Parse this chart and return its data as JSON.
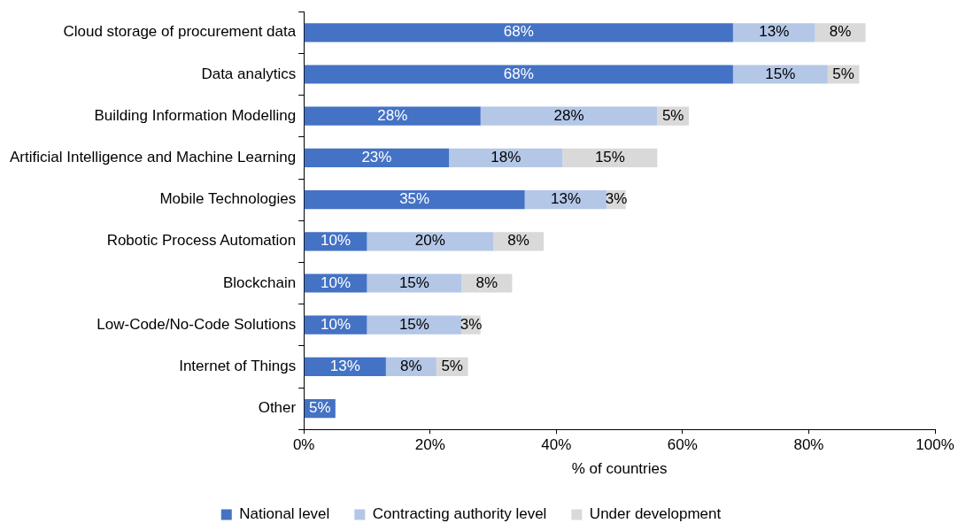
{
  "chart_data": {
    "type": "bar",
    "orientation": "horizontal",
    "stacked": true,
    "xlabel": "% of countries",
    "categories": [
      "Cloud storage of procurement data",
      "Data analytics",
      "Building Information Modelling",
      "Artificial Intelligence and Machine Learning",
      "Mobile Technologies",
      "Robotic Process Automation",
      "Blockchain",
      "Low-Code/No-Code Solutions",
      "Internet of Things",
      "Other"
    ],
    "series": [
      {
        "name": "National level",
        "color": "#4472c4",
        "values": [
          68,
          68,
          28,
          23,
          35,
          10,
          10,
          10,
          13,
          5
        ],
        "value_labels": [
          "68%",
          "68%",
          "28%",
          "23%",
          "35%",
          "10%",
          "10%",
          "10%",
          "13%",
          "5%"
        ]
      },
      {
        "name": "Contracting authority level",
        "color": "#b4c7e7",
        "values": [
          13,
          15,
          28,
          18,
          13,
          20,
          15,
          15,
          8,
          null
        ],
        "value_labels": [
          "13%",
          "15%",
          "28%",
          "18%",
          "13%",
          "20%",
          "15%",
          "15%",
          "8%",
          null
        ]
      },
      {
        "name": "Under development",
        "color": "#d9d9d9",
        "values": [
          8,
          5,
          5,
          15,
          3,
          8,
          8,
          3,
          5,
          null
        ],
        "value_labels": [
          "8%",
          "5%",
          "5%",
          "15%",
          "3%",
          "8%",
          "8%",
          "3%",
          "5%",
          null
        ]
      }
    ],
    "xlim": [
      0,
      100
    ],
    "xticks": [
      {
        "value": 0,
        "label": "0%"
      },
      {
        "value": 20,
        "label": "20%"
      },
      {
        "value": 40,
        "label": "40%"
      },
      {
        "value": 60,
        "label": "60%"
      },
      {
        "value": 80,
        "label": "80%"
      },
      {
        "value": 100,
        "label": "100%"
      }
    ],
    "grid": false,
    "legend": "bottom"
  }
}
